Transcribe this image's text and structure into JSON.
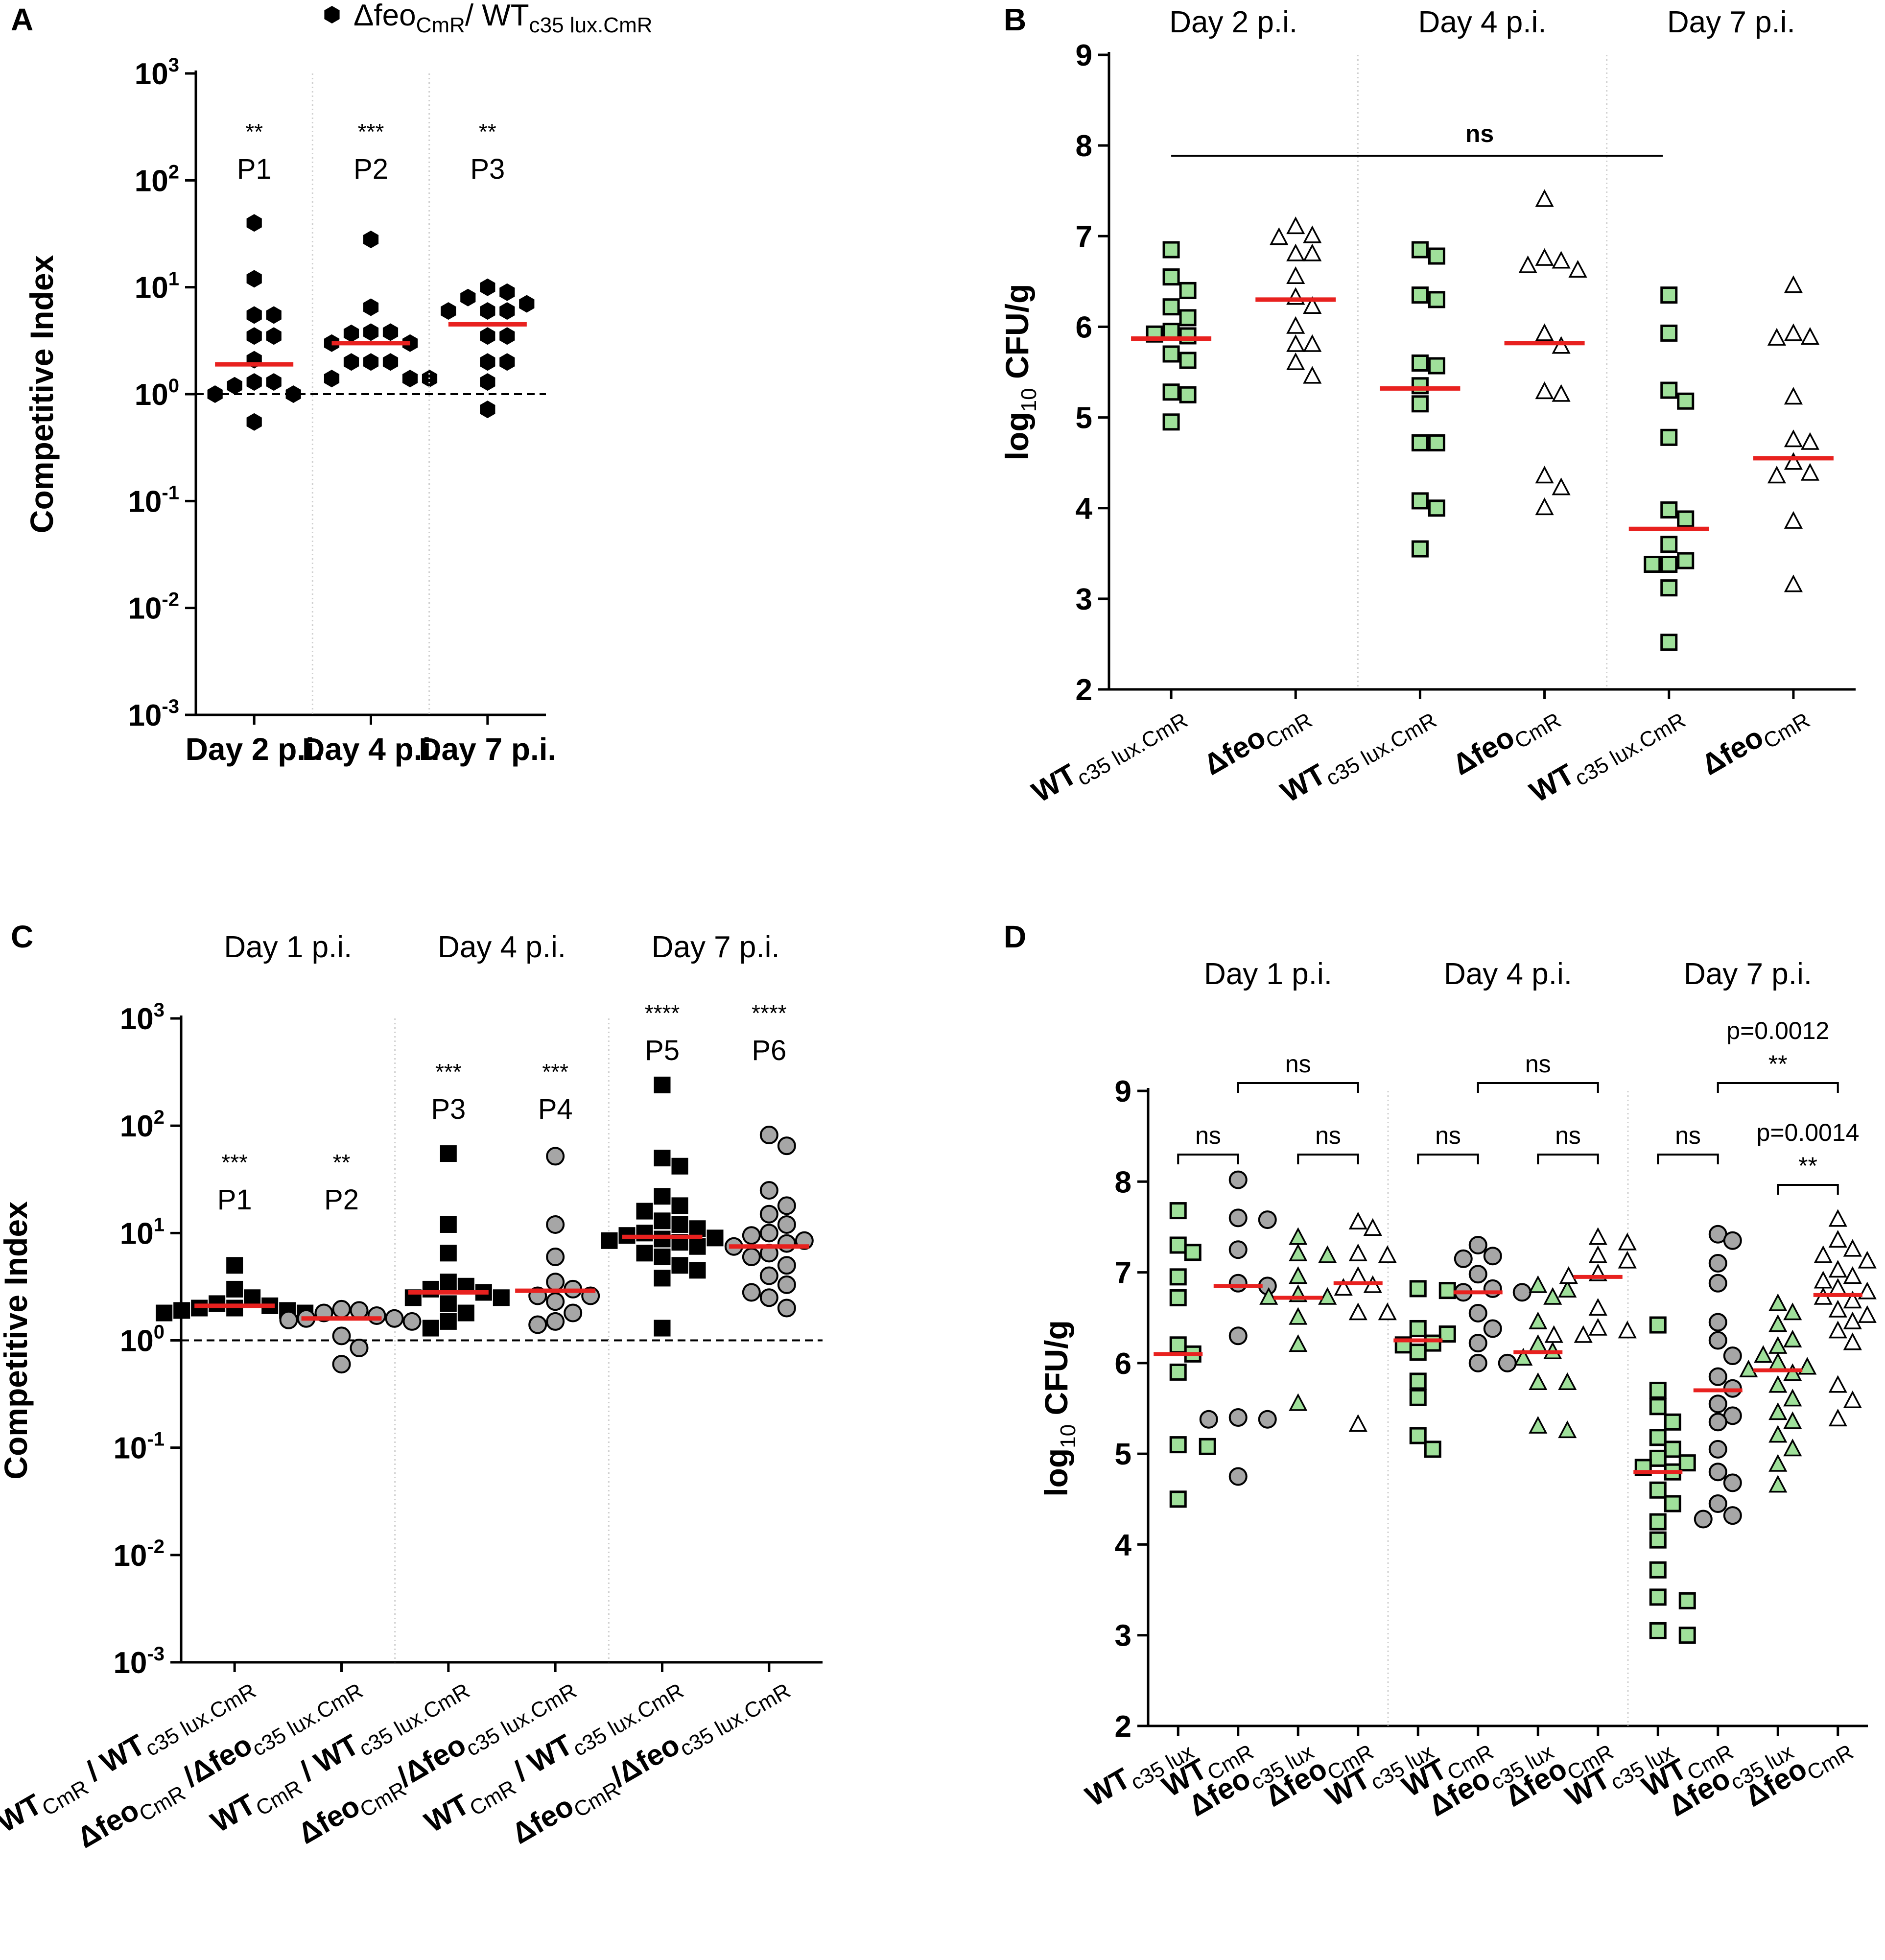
{
  "chart_data": [
    {
      "panel": "A",
      "type": "scatter",
      "legend": {
        "marker": "black hexagon",
        "label_main": "Δfeo",
        "label_sub1": "CmR",
        "label_sep": "/ WT",
        "label_sub2": "c35 lux.CmR"
      },
      "ylabel": "Competitive Index",
      "yscale": "log",
      "ylim": [
        0.001,
        1000
      ],
      "yticks": [
        {
          "base": "10",
          "exp": "3"
        },
        {
          "base": "10",
          "exp": "2"
        },
        {
          "base": "10",
          "exp": "1"
        },
        {
          "base": "10",
          "exp": "0"
        },
        {
          "base": "10",
          "exp": "-1"
        },
        {
          "base": "10",
          "exp": "-2"
        },
        {
          "base": "10",
          "exp": "-3"
        }
      ],
      "reference_line": 1,
      "groups": [
        {
          "label": "Day 2 p.i.",
          "stars": "**",
          "plabel": "P1",
          "median": 1.9,
          "values": [
            40,
            12,
            5.5,
            5.5,
            3.5,
            3.5,
            2.1,
            1.3,
            1.3,
            1.2,
            1.0,
            1.0,
            0.55
          ]
        },
        {
          "label": "Day 4 p.i.",
          "stars": "***",
          "plabel": "P2",
          "median": 3.0,
          "values": [
            28,
            6.5,
            3.8,
            3.8,
            3.7,
            3.0,
            3.0,
            2.0,
            2.0,
            2.0,
            1.4,
            1.4,
            1.4
          ]
        },
        {
          "label": "Day 7 p.i.",
          "stars": "**",
          "plabel": "P3",
          "median": 4.5,
          "values": [
            10,
            9,
            8,
            7,
            6,
            6,
            6,
            3.5,
            3.5,
            2.0,
            2.0,
            1.3,
            0.72
          ]
        }
      ]
    },
    {
      "panel": "B",
      "type": "scatter",
      "ylabel_main": "log",
      "ylabel_sub": "10",
      "ylabel_rest": " CFU/g",
      "ylim": [
        2,
        9
      ],
      "yticks": [
        "2",
        "3",
        "4",
        "5",
        "6",
        "7",
        "8",
        "9"
      ],
      "group_headers": [
        "Day 2 p.i.",
        "Day 4 p.i.",
        "Day 7 p.i."
      ],
      "sig_label": "ns",
      "series": [
        {
          "name": "WT",
          "label_main": "WT",
          "label_sub": "c35 lux.CmR",
          "marker": "green square",
          "median": 5.87,
          "values": [
            6.85,
            6.55,
            6.4,
            6.22,
            6.1,
            5.95,
            5.92,
            5.9,
            5.7,
            5.63,
            5.28,
            5.25,
            4.95
          ]
        },
        {
          "name": "Δfeo",
          "label_main": "Δfeo",
          "label_sub": "CmR",
          "marker": "open triangle",
          "median": 6.3,
          "values": [
            7.1,
            7.0,
            6.98,
            6.8,
            6.8,
            6.55,
            6.32,
            6.22,
            6.0,
            5.8,
            5.8,
            5.6,
            5.45
          ]
        },
        {
          "name": "WT",
          "label_main": "WT",
          "label_sub": "c35 lux.CmR",
          "marker": "green square",
          "median": 5.32,
          "values": [
            6.85,
            6.78,
            6.35,
            6.3,
            5.6,
            5.57,
            5.35,
            5.15,
            4.72,
            4.72,
            4.08,
            4.0,
            3.55
          ]
        },
        {
          "name": "Δfeo",
          "label_main": "Δfeo",
          "label_sub": "CmR",
          "marker": "open triangle",
          "median": 5.82,
          "values": [
            7.4,
            6.75,
            6.72,
            6.67,
            6.62,
            5.92,
            5.78,
            5.28,
            5.25,
            4.35,
            4.22,
            4.0
          ]
        },
        {
          "name": "WT",
          "label_main": "WT",
          "label_sub": "c35 lux.CmR",
          "marker": "green square",
          "median": 3.77,
          "values": [
            6.35,
            5.93,
            5.3,
            5.18,
            4.78,
            3.98,
            3.88,
            3.6,
            3.42,
            3.38,
            3.38,
            3.12,
            2.52
          ]
        },
        {
          "name": "Δfeo",
          "label_main": "Δfeo",
          "label_sub": "CmR",
          "marker": "open triangle",
          "median": 4.55,
          "values": [
            6.45,
            5.92,
            5.88,
            5.87,
            5.22,
            4.75,
            4.72,
            4.5,
            4.38,
            4.35,
            3.85,
            3.15
          ]
        }
      ]
    },
    {
      "panel": "C",
      "type": "scatter",
      "ylabel": "Competitive Index",
      "yscale": "log",
      "ylim": [
        0.001,
        1000
      ],
      "yticks": [
        {
          "base": "10",
          "exp": "3"
        },
        {
          "base": "10",
          "exp": "2"
        },
        {
          "base": "10",
          "exp": "1"
        },
        {
          "base": "10",
          "exp": "0"
        },
        {
          "base": "10",
          "exp": "-1"
        },
        {
          "base": "10",
          "exp": "-2"
        },
        {
          "base": "10",
          "exp": "-3"
        }
      ],
      "reference_line": 1,
      "group_headers": [
        "Day 1 p.i.",
        "Day 4 p.i.",
        "Day 7 p.i."
      ],
      "series": [
        {
          "label_a": "WT",
          "sub_a": "CmR",
          "sep": " / ",
          "label_b": "WT",
          "sub_b": "c35 lux.CmR",
          "marker": "black square",
          "stars": "***",
          "plabel": "P1",
          "median": 2.1,
          "values": [
            5.0,
            3.0,
            2.5,
            2.2,
            2.1,
            2.0,
            2.0,
            1.9,
            1.9,
            1.8,
            1.8
          ]
        },
        {
          "label_a": "Δfeo",
          "sub_a": "CmR",
          "sep": " /",
          "label_b": "Δfeo",
          "sub_b": "c35 lux.CmR",
          "marker": "grey circle",
          "stars": "**",
          "plabel": "P2",
          "median": 1.6,
          "values": [
            1.95,
            1.9,
            1.8,
            1.7,
            1.6,
            1.6,
            1.55,
            1.5,
            1.1,
            0.85,
            0.6
          ]
        },
        {
          "label_a": "WT",
          "sub_a": "CmR",
          "sep": " / ",
          "label_b": "WT",
          "sub_b": "c35 lux.CmR",
          "marker": "black square",
          "stars": "***",
          "plabel": "P3",
          "median": 2.8,
          "values": [
            55,
            12,
            6.5,
            3.5,
            3.2,
            3.0,
            2.8,
            2.5,
            2.5,
            2.2,
            1.8,
            1.5,
            1.3
          ]
        },
        {
          "label_a": "Δfeo",
          "sub_a": "CmR",
          "sep": "/",
          "label_b": "Δfeo",
          "sub_b": "c35 lux.CmR",
          "marker": "grey circle",
          "stars": "***",
          "plabel": "P4",
          "median": 2.9,
          "values": [
            52,
            12,
            6.0,
            3.5,
            3.0,
            2.6,
            2.6,
            2.3,
            1.8,
            1.5,
            1.4
          ]
        },
        {
          "label_a": "WT",
          "sub_a": "CmR",
          "sep": " / ",
          "label_b": "WT",
          "sub_b": "c35 lux.CmR",
          "marker": "black square",
          "stars": "****",
          "plabel": "P5",
          "median": 9.2,
          "values": [
            240,
            50,
            42,
            22,
            18,
            16,
            13,
            12,
            11,
            10,
            9.5,
            9.0,
            8.8,
            8.5,
            8.2,
            7.5,
            6.5,
            6.0,
            5.0,
            4.5,
            3.8,
            1.3
          ]
        },
        {
          "label_a": "Δfeo",
          "sub_a": "CmR",
          "sep": "/",
          "label_b": "Δfeo",
          "sub_b": "c35 lux.CmR",
          "marker": "grey circle",
          "stars": "****",
          "plabel": "P6",
          "median": 7.5,
          "values": [
            82,
            65,
            25,
            18,
            15,
            12,
            10,
            9.5,
            8.5,
            8,
            7.5,
            6.5,
            6,
            5,
            4,
            3.3,
            2.8,
            2.5,
            2.0
          ]
        }
      ]
    },
    {
      "panel": "D",
      "type": "scatter",
      "ylabel_main": "log",
      "ylabel_sub": "10",
      "ylabel_rest": " CFU/g",
      "ylim": [
        2,
        9
      ],
      "yticks": [
        "2",
        "3",
        "4",
        "5",
        "6",
        "7",
        "8",
        "9"
      ],
      "group_headers": [
        "Day 1 p.i.",
        "Day 4 p.i.",
        "Day 7 p.i."
      ],
      "brackets": [
        {
          "from": 0,
          "to": 1,
          "label": "ns"
        },
        {
          "from": 2,
          "to": 3,
          "label": "ns"
        },
        {
          "from": 1,
          "to": 3,
          "label": "ns"
        },
        {
          "from": 4,
          "to": 5,
          "label": "ns"
        },
        {
          "from": 6,
          "to": 7,
          "label": "ns"
        },
        {
          "from": 5,
          "to": 7,
          "label": "ns"
        },
        {
          "from": 8,
          "to": 9,
          "label": "ns"
        },
        {
          "from": 10,
          "to": 11,
          "label": "**",
          "pvalue": "p=0.0014"
        },
        {
          "from": 9,
          "to": 11,
          "label": "**",
          "pvalue": "p=0.0012"
        }
      ],
      "series": [
        {
          "label_main": "WT",
          "label_sub": "c35 lux",
          "marker": "green square",
          "median": 6.1,
          "values": [
            7.68,
            7.3,
            7.22,
            6.95,
            6.72,
            6.2,
            6.1,
            5.9,
            5.1,
            5.08,
            4.5
          ]
        },
        {
          "label_main": "WT",
          "label_sub": "CmR",
          "marker": "grey circle",
          "median": 6.85,
          "values": [
            8.02,
            7.6,
            7.58,
            7.25,
            6.88,
            6.85,
            6.3,
            5.4,
            5.38,
            5.38,
            4.75
          ]
        },
        {
          "label_main": "Δfeo",
          "label_sub": "c35 lux",
          "marker": "green triangle",
          "median": 6.72,
          "values": [
            7.38,
            7.2,
            7.18,
            6.95,
            6.75,
            6.72,
            6.72,
            6.5,
            6.2,
            5.55
          ]
        },
        {
          "label_main": "Δfeo",
          "label_sub": "CmR",
          "marker": "open triangle",
          "median": 6.88,
          "values": [
            7.55,
            7.48,
            7.2,
            7.18,
            6.95,
            6.85,
            6.82,
            6.55,
            6.55,
            5.32
          ]
        },
        {
          "label_main": "WT",
          "label_sub": "c35 lux",
          "marker": "green square",
          "median": 6.25,
          "values": [
            6.82,
            6.8,
            6.38,
            6.32,
            6.22,
            6.2,
            6.12,
            5.8,
            5.62,
            5.2,
            5.05
          ]
        },
        {
          "label_main": "WT",
          "label_sub": "CmR",
          "marker": "grey circle",
          "median": 6.78,
          "values": [
            7.3,
            7.18,
            7.15,
            6.98,
            6.82,
            6.78,
            6.78,
            6.55,
            6.38,
            6.22,
            6.0,
            6.0
          ]
        },
        {
          "label_main": "Δfeo",
          "label_sub": "c35 lux",
          "marker": "green triangle",
          "median": 6.12,
          "values": [
            6.85,
            6.8,
            6.72,
            6.45,
            6.2,
            6.12,
            6.05,
            5.78,
            5.78,
            5.3,
            5.25
          ]
        },
        {
          "label_main": "Δfeo",
          "label_sub": "CmR",
          "marker": "open triangle",
          "median": 6.95,
          "values": [
            7.38,
            7.32,
            7.18,
            7.12,
            6.98,
            6.95,
            6.6,
            6.38,
            6.35,
            6.3,
            6.3
          ]
        },
        {
          "label_main": "WT",
          "label_sub": "c35 lux",
          "marker": "green square",
          "median": 4.8,
          "values": [
            6.42,
            5.7,
            5.52,
            5.35,
            5.18,
            5.05,
            4.95,
            4.9,
            4.85,
            4.8,
            4.6,
            4.45,
            4.25,
            4.05,
            3.72,
            3.42,
            3.38,
            3.05,
            3.0
          ]
        },
        {
          "label_main": "WT",
          "label_sub": "CmR",
          "marker": "grey circle",
          "median": 5.7,
          "values": [
            7.42,
            7.35,
            7.1,
            6.88,
            6.45,
            6.25,
            6.08,
            5.85,
            5.72,
            5.55,
            5.42,
            5.35,
            5.05,
            4.8,
            4.68,
            4.45,
            4.32,
            4.28
          ]
        },
        {
          "label_main": "Δfeo",
          "label_sub": "c35 lux",
          "marker": "green triangle",
          "median": 5.92,
          "values": [
            6.65,
            6.55,
            6.42,
            6.25,
            6.18,
            6.08,
            6.0,
            5.95,
            5.92,
            5.88,
            5.75,
            5.6,
            5.45,
            5.35,
            5.2,
            5.05,
            4.88,
            4.65
          ]
        },
        {
          "label_main": "Δfeo",
          "label_sub": "CmR",
          "marker": "open triangle",
          "median": 6.75,
          "values": [
            7.58,
            7.35,
            7.25,
            7.18,
            7.12,
            7.02,
            6.95,
            6.9,
            6.82,
            6.78,
            6.72,
            6.68,
            6.58,
            6.52,
            6.45,
            6.35,
            6.22,
            5.75,
            5.58,
            5.38
          ]
        }
      ]
    }
  ]
}
